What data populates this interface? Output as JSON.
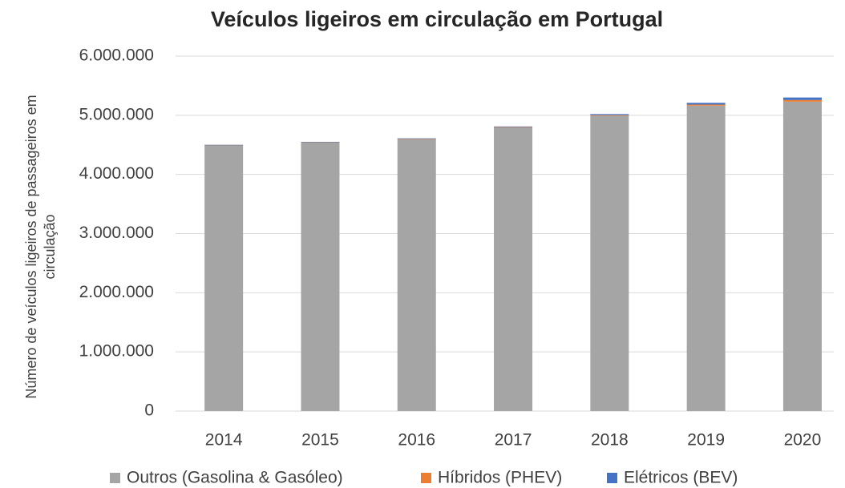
{
  "chart_data": {
    "type": "stacked_bar",
    "title": "Veículos ligeiros em circulação em Portugal",
    "y_label": [
      "Número de  veículos ligeiros de passageiros em",
      "circulação"
    ],
    "categories": [
      "2014",
      "2015",
      "2016",
      "2017",
      "2018",
      "2019",
      "2020"
    ],
    "series": [
      {
        "name": "Outros (Gasolina & Gasóleo)",
        "color": "#a5a5a5",
        "values": [
          4497000,
          4545000,
          4602000,
          4795000,
          4993000,
          5163000,
          5230000
        ]
      },
      {
        "name": "Híbridos (PHEV)",
        "color": "#ed7d31",
        "values": [
          1000,
          2000,
          3000,
          6000,
          10000,
          18000,
          28000
        ]
      },
      {
        "name": "Elétricos (BEV)",
        "color": "#4472c4",
        "values": [
          2000,
          3000,
          5000,
          9000,
          17000,
          29000,
          42000
        ]
      }
    ],
    "ylim": [
      0,
      6000000
    ],
    "yticks": [
      0,
      {
        "value": 1000000,
        "label": "1.000.000"
      },
      {
        "value": 2000000,
        "label": "2.000.000"
      },
      {
        "value": 3000000,
        "label": "3.000.000"
      },
      {
        "value": 4000000,
        "label": "4.000.000"
      },
      {
        "value": 5000000,
        "label": "5.000.000"
      },
      {
        "value": 6000000,
        "label": "6.000.000"
      }
    ],
    "grid": true,
    "legend": "bottom"
  }
}
